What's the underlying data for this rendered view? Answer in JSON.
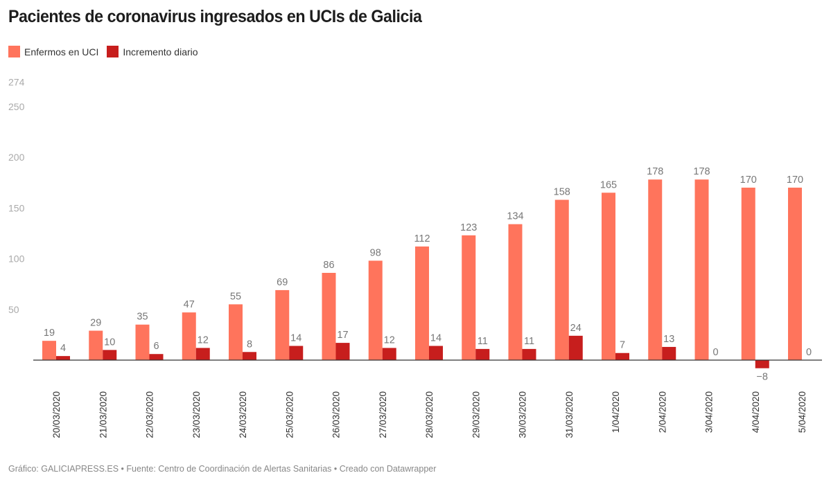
{
  "title": "Pacientes de coronavirus ingresados en UCIs de Galicia",
  "footer": "Gráfico: GALICIAPRESS.ES • Fuente: Centro de Coordinación de Alertas Sanitarias • Creado con Datawrapper",
  "chart_data": {
    "type": "bar",
    "title": "Pacientes de coronavirus ingresados en UCIs de Galicia",
    "categories": [
      "20/03/2020",
      "21/03/2020",
      "22/03/2020",
      "23/03/2020",
      "24/03/2020",
      "25/03/2020",
      "26/03/2020",
      "27/03/2020",
      "28/03/2020",
      "29/03/2020",
      "30/03/2020",
      "31/03/2020",
      "1/04/2020",
      "2/04/2020",
      "3/04/2020",
      "4/04/2020",
      "5/04/2020"
    ],
    "series": [
      {
        "name": "Enfermos en UCI",
        "color": "#ff745c",
        "values": [
          19,
          29,
          35,
          47,
          55,
          69,
          86,
          98,
          112,
          123,
          134,
          158,
          165,
          178,
          178,
          170,
          170
        ]
      },
      {
        "name": "Incremento diario",
        "color": "#c71e1d",
        "values": [
          4,
          10,
          6,
          12,
          8,
          14,
          17,
          12,
          14,
          11,
          11,
          24,
          7,
          13,
          0,
          -8,
          0
        ]
      }
    ],
    "yticks": [
      50,
      100,
      150,
      200,
      250,
      274
    ],
    "ylim": [
      -12,
      274
    ],
    "grid": false,
    "legend": "top-left"
  }
}
